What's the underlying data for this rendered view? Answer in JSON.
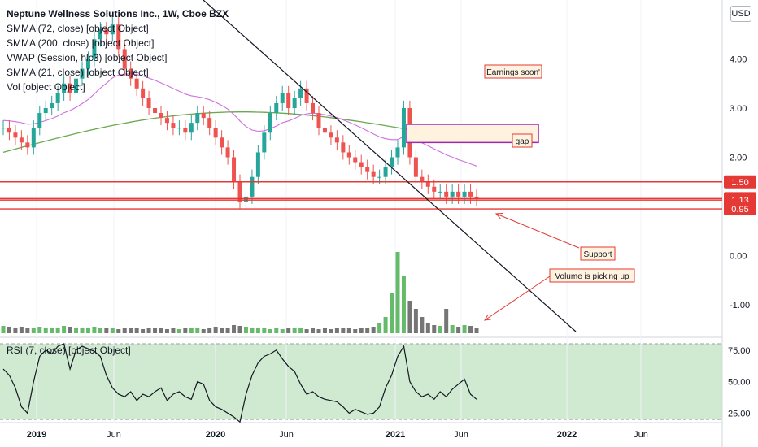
{
  "legend": {
    "title": "Neptune Wellness Solutions Inc., 1W, Cboe BZX",
    "lines": [
      "SMMA (72, close) [object Object]",
      "SMMA (200, close) [object Object]",
      "VWAP (Session, hlc3) [object Object]",
      "SMMA (21, close) [object Object]",
      "Vol [object Object]"
    ],
    "rsi": "RSI (7, close) [object Object]"
  },
  "currency_button": "USD",
  "colors": {
    "up": "#26a69a",
    "down": "#ef5350",
    "smma72": "#cf6fe0",
    "smma200": "#6aa84f",
    "vwap": "#7e57c2",
    "level": "#e53935",
    "rsi_band": "#c8e6c9",
    "trend": "#131722",
    "annotation_border": "#e53935",
    "annotation_bg": "#fff3e0",
    "gap_border": "#9c27b0"
  },
  "annotations": [
    {
      "name": "earnings-soon-note",
      "text": "Earnings soon'"
    },
    {
      "name": "gap-note",
      "text": "gap"
    },
    {
      "name": "support-note",
      "text": "Support"
    },
    {
      "name": "volume-note",
      "text": "Volume is picking up"
    }
  ],
  "chart_data": {
    "type": "candlestick",
    "xlabel": "",
    "ylabel": "",
    "x_ticks": [
      "2019",
      "Jun",
      "2020",
      "Jun",
      "2021",
      "Jun",
      "2022",
      "Jun"
    ],
    "y_ticks": [
      "4.00",
      "3.00",
      "2.00",
      "0.00",
      "-1.00"
    ],
    "price_labels": [
      {
        "value": "1.50",
        "line": 1.5
      },
      {
        "value": "1.16",
        "line": 1.16
      },
      {
        "value": "1.13",
        "line": 1.13
      },
      {
        "value": "0.95",
        "line": 0.95
      }
    ],
    "levels": [
      1.5,
      1.16,
      1.13,
      0.95
    ],
    "gap_zone": [
      2.3,
      2.67
    ],
    "trendline": [
      {
        "t": "2018-12-01",
        "y": 5.8
      },
      {
        "t": "2021-10-01",
        "y": -2.5
      }
    ],
    "rsi_ticks": [
      "75.00",
      "50.00",
      "25.00"
    ],
    "rsi_band": [
      20,
      80
    ],
    "candles_summary": {
      "start": "2018-12",
      "end": "2021-06",
      "close_series": [
        2.6,
        2.5,
        2.4,
        2.3,
        2.2,
        2.6,
        2.9,
        3.0,
        3.1,
        3.3,
        3.5,
        3.3,
        3.6,
        3.8,
        4.0,
        4.4,
        4.6,
        4.5,
        4.7,
        4.2,
        3.8,
        3.6,
        3.4,
        3.2,
        3.0,
        2.9,
        2.8,
        2.7,
        2.6,
        2.6,
        2.5,
        2.7,
        2.9,
        2.8,
        2.6,
        2.4,
        2.2,
        2.0,
        1.5,
        1.1,
        1.2,
        1.6,
        2.1,
        2.5,
        2.9,
        3.1,
        3.3,
        3.0,
        3.2,
        3.4,
        3.1,
        2.9,
        2.6,
        2.5,
        2.4,
        2.3,
        2.1,
        2.0,
        1.9,
        1.8,
        1.7,
        1.6,
        1.6,
        1.8,
        2.0,
        2.2,
        3.0,
        2.0,
        1.6,
        1.5,
        1.4,
        1.3,
        1.3,
        1.2,
        1.3,
        1.2,
        1.3,
        1.2,
        1.16
      ],
      "rsi_series": [
        60,
        55,
        45,
        30,
        25,
        50,
        70,
        75,
        72,
        78,
        80,
        60,
        75,
        78,
        76,
        74,
        70,
        55,
        45,
        40,
        38,
        42,
        35,
        40,
        38,
        42,
        45,
        35,
        40,
        42,
        38,
        36,
        50,
        48,
        35,
        30,
        28,
        25,
        22,
        18,
        40,
        55,
        65,
        70,
        72,
        75,
        68,
        62,
        58,
        48,
        40,
        42,
        38,
        36,
        35,
        34,
        30,
        25,
        28,
        26,
        24,
        25,
        30,
        45,
        55,
        70,
        78,
        50,
        42,
        38,
        40,
        36,
        42,
        38,
        44,
        48,
        52,
        40,
        36
      ],
      "volume_series": [
        0.09,
        0.08,
        0.07,
        0.08,
        0.06,
        0.07,
        0.08,
        0.07,
        0.06,
        0.07,
        0.09,
        0.08,
        0.07,
        0.06,
        0.07,
        0.08,
        0.06,
        0.07,
        0.06,
        0.05,
        0.06,
        0.07,
        0.06,
        0.05,
        0.06,
        0.07,
        0.06,
        0.05,
        0.06,
        0.05,
        0.06,
        0.07,
        0.06,
        0.05,
        0.07,
        0.08,
        0.06,
        0.07,
        0.1,
        0.09,
        0.08,
        0.06,
        0.07,
        0.06,
        0.05,
        0.06,
        0.05,
        0.06,
        0.07,
        0.06,
        0.05,
        0.06,
        0.05,
        0.06,
        0.05,
        0.06,
        0.07,
        0.06,
        0.05,
        0.07,
        0.06,
        0.08,
        0.12,
        0.2,
        0.5,
        1.0,
        0.7,
        0.4,
        0.3,
        0.2,
        0.12,
        0.1,
        0.09,
        0.3,
        0.1,
        0.08,
        0.1,
        0.09,
        0.07
      ]
    }
  }
}
